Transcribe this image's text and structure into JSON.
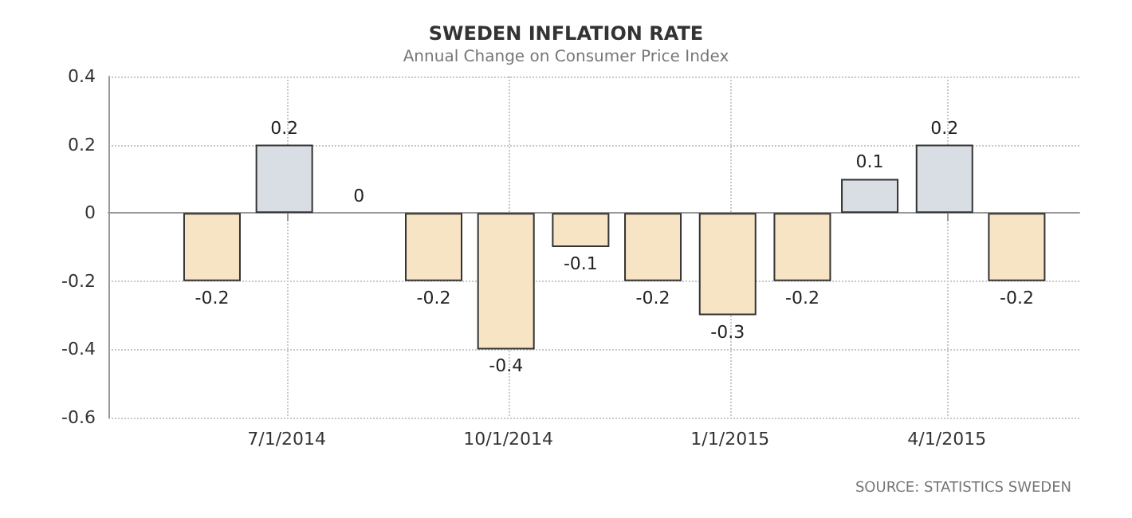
{
  "chart_data": {
    "type": "bar",
    "title": "SWEDEN INFLATION RATE",
    "subtitle": "Annual Change on Consumer Price Index",
    "x": [
      "2014-05-31",
      "2014-06-30",
      "2014-07-31",
      "2014-08-31",
      "2014-09-30",
      "2014-10-31",
      "2014-11-30",
      "2014-12-31",
      "2015-01-31",
      "2015-02-28",
      "2015-03-31",
      "2015-04-30"
    ],
    "values": [
      -0.2,
      0.2,
      0,
      -0.2,
      -0.4,
      -0.1,
      -0.2,
      -0.3,
      -0.2,
      0.1,
      0.2,
      -0.2
    ],
    "colors": [
      "#f6e4c4",
      "#d9dee4",
      "#f6e4c4",
      "#f6e4c4",
      "#f6e4c4",
      "#f6e4c4",
      "#f6e4c4",
      "#f6e4c4",
      "#f6e4c4",
      "#d9dee4",
      "#d9dee4",
      "#f6e4c4"
    ],
    "xlim": [
      "2014-04-18",
      "2015-05-26"
    ],
    "xticks": [
      {
        "value": "2014-07-01",
        "label": "7/1/2014"
      },
      {
        "value": "2014-10-01",
        "label": "10/1/2014"
      },
      {
        "value": "2015-01-01",
        "label": "1/1/2015"
      },
      {
        "value": "2015-04-01",
        "label": "4/1/2015"
      }
    ],
    "ylim": [
      -0.6,
      0.4
    ],
    "yticks": [
      -0.6,
      -0.4,
      -0.2,
      0,
      0.2,
      0.4
    ],
    "grid": true,
    "data_labels": true,
    "annotations": [
      "SOURCE: STATISTICS SWEDEN"
    ]
  }
}
